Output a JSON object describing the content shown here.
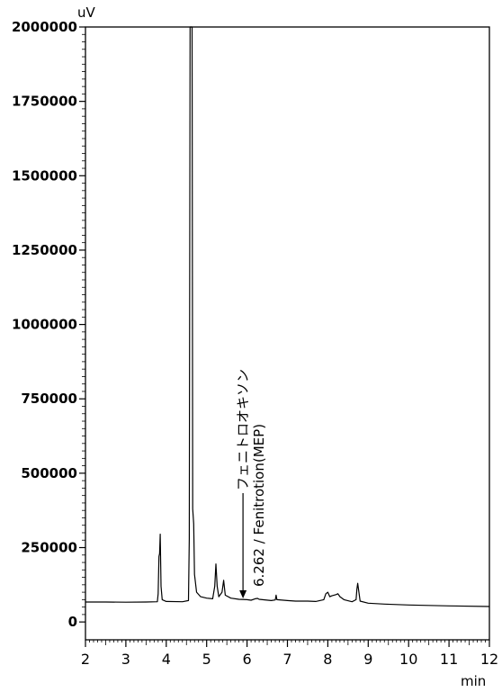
{
  "chart_data": {
    "type": "line",
    "title": "",
    "xlabel": "min",
    "ylabel": "uV",
    "xlim": [
      2,
      12
    ],
    "ylim": [
      -60000,
      2000000
    ],
    "x_ticks": [
      2,
      3,
      4,
      5,
      6,
      7,
      8,
      9,
      10,
      11,
      12
    ],
    "y_ticks": [
      0,
      250000,
      500000,
      750000,
      1000000,
      1250000,
      1500000,
      1750000,
      2000000
    ],
    "grid": false,
    "series": [
      {
        "name": "",
        "color": "#000000",
        "points": [
          [
            2.0,
            67000
          ],
          [
            2.5,
            67000
          ],
          [
            3.0,
            66500
          ],
          [
            3.5,
            67000
          ],
          [
            3.78,
            68000
          ],
          [
            3.8,
            95000
          ],
          [
            3.82,
            220000
          ],
          [
            3.835,
            230000
          ],
          [
            3.85,
            295000
          ],
          [
            3.87,
            120000
          ],
          [
            3.9,
            75000
          ],
          [
            4.0,
            69000
          ],
          [
            4.4,
            68000
          ],
          [
            4.55,
            72000
          ],
          [
            4.57,
            280000
          ],
          [
            4.59,
            2000000
          ],
          [
            4.64,
            2000000
          ],
          [
            4.655,
            380000
          ],
          [
            4.68,
            330000
          ],
          [
            4.7,
            160000
          ],
          [
            4.75,
            100000
          ],
          [
            4.85,
            85000
          ],
          [
            5.0,
            80000
          ],
          [
            5.15,
            78000
          ],
          [
            5.2,
            120000
          ],
          [
            5.23,
            195000
          ],
          [
            5.26,
            120000
          ],
          [
            5.3,
            85000
          ],
          [
            5.38,
            100000
          ],
          [
            5.42,
            140000
          ],
          [
            5.46,
            90000
          ],
          [
            5.6,
            80000
          ],
          [
            5.8,
            76000
          ],
          [
            6.0,
            75000
          ],
          [
            6.1,
            73000
          ],
          [
            6.2,
            78000
          ],
          [
            6.262,
            79000
          ],
          [
            6.3,
            76000
          ],
          [
            6.6,
            72000
          ],
          [
            6.7,
            74000
          ],
          [
            6.72,
            90000
          ],
          [
            6.74,
            75000
          ],
          [
            7.0,
            72000
          ],
          [
            7.2,
            70000
          ],
          [
            7.5,
            70000
          ],
          [
            7.7,
            69000
          ],
          [
            7.9,
            75000
          ],
          [
            7.95,
            95000
          ],
          [
            8.0,
            100000
          ],
          [
            8.05,
            85000
          ],
          [
            8.1,
            88000
          ],
          [
            8.2,
            92000
          ],
          [
            8.25,
            95000
          ],
          [
            8.3,
            85000
          ],
          [
            8.4,
            75000
          ],
          [
            8.6,
            68000
          ],
          [
            8.7,
            75000
          ],
          [
            8.72,
            110000
          ],
          [
            8.74,
            130000
          ],
          [
            8.76,
            110000
          ],
          [
            8.8,
            70000
          ],
          [
            9.0,
            63000
          ],
          [
            9.4,
            60000
          ],
          [
            10.0,
            57000
          ],
          [
            11.0,
            54000
          ],
          [
            12.0,
            52000
          ]
        ]
      }
    ],
    "annotations": [
      {
        "x": 5.9,
        "line1": "フェニトロオキソン",
        "line2": "6.262 / Fenitrotion(MEP)"
      }
    ]
  }
}
